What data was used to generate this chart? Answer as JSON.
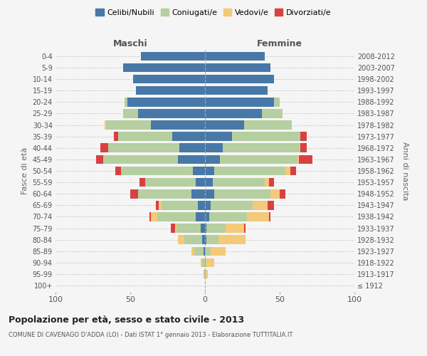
{
  "age_groups": [
    "100+",
    "95-99",
    "90-94",
    "85-89",
    "80-84",
    "75-79",
    "70-74",
    "65-69",
    "60-64",
    "55-59",
    "50-54",
    "45-49",
    "40-44",
    "35-39",
    "30-34",
    "25-29",
    "20-24",
    "15-19",
    "10-14",
    "5-9",
    "0-4"
  ],
  "birth_years": [
    "≤ 1912",
    "1913-1917",
    "1918-1922",
    "1923-1927",
    "1928-1932",
    "1933-1937",
    "1938-1942",
    "1943-1947",
    "1948-1952",
    "1953-1957",
    "1958-1962",
    "1963-1967",
    "1968-1972",
    "1973-1977",
    "1978-1982",
    "1983-1987",
    "1988-1992",
    "1993-1997",
    "1998-2002",
    "2003-2007",
    "2008-2012"
  ],
  "male": {
    "celibi": [
      0,
      0,
      0,
      1,
      2,
      3,
      6,
      5,
      9,
      6,
      8,
      18,
      17,
      22,
      36,
      45,
      52,
      46,
      48,
      55,
      43
    ],
    "coniugati": [
      0,
      1,
      2,
      6,
      12,
      16,
      26,
      24,
      36,
      34,
      48,
      50,
      48,
      36,
      30,
      10,
      2,
      0,
      0,
      0,
      0
    ],
    "vedovi": [
      0,
      0,
      1,
      2,
      4,
      1,
      4,
      2,
      0,
      0,
      0,
      0,
      0,
      0,
      1,
      0,
      0,
      0,
      0,
      0,
      0
    ],
    "divorziati": [
      0,
      0,
      0,
      0,
      0,
      3,
      1,
      2,
      5,
      4,
      4,
      5,
      5,
      3,
      0,
      0,
      0,
      0,
      0,
      0,
      0
    ]
  },
  "female": {
    "nubili": [
      0,
      0,
      0,
      0,
      1,
      1,
      3,
      4,
      6,
      5,
      6,
      10,
      12,
      18,
      26,
      38,
      46,
      42,
      46,
      44,
      40
    ],
    "coniugate": [
      0,
      0,
      1,
      4,
      8,
      13,
      25,
      28,
      38,
      35,
      48,
      52,
      52,
      46,
      32,
      14,
      4,
      0,
      0,
      0,
      0
    ],
    "vedove": [
      0,
      2,
      5,
      10,
      18,
      12,
      15,
      10,
      6,
      3,
      3,
      1,
      0,
      0,
      0,
      0,
      0,
      0,
      0,
      0,
      0
    ],
    "divorziate": [
      0,
      0,
      0,
      0,
      0,
      1,
      1,
      4,
      4,
      3,
      4,
      9,
      4,
      4,
      0,
      0,
      0,
      0,
      0,
      0,
      0
    ]
  },
  "colors": {
    "celibi": "#4878a8",
    "coniugati": "#b5cfa0",
    "vedovi": "#f4c97a",
    "divorziati": "#d94040"
  },
  "xlim": 100,
  "title": "Popolazione per età, sesso e stato civile - 2013",
  "subtitle": "COMUNE DI CAVENAGO D'ADDA (LO) - Dati ISTAT 1° gennaio 2013 - Elaborazione TUTTITALIA.IT",
  "ylabel_left": "Fasce di età",
  "ylabel_right": "Anni di nascita",
  "xlabel_left": "Maschi",
  "xlabel_right": "Femmine",
  "legend_labels": [
    "Celibi/Nubili",
    "Coniugati/e",
    "Vedovi/e",
    "Divorziati/e"
  ],
  "bg_color": "#f5f5f5"
}
